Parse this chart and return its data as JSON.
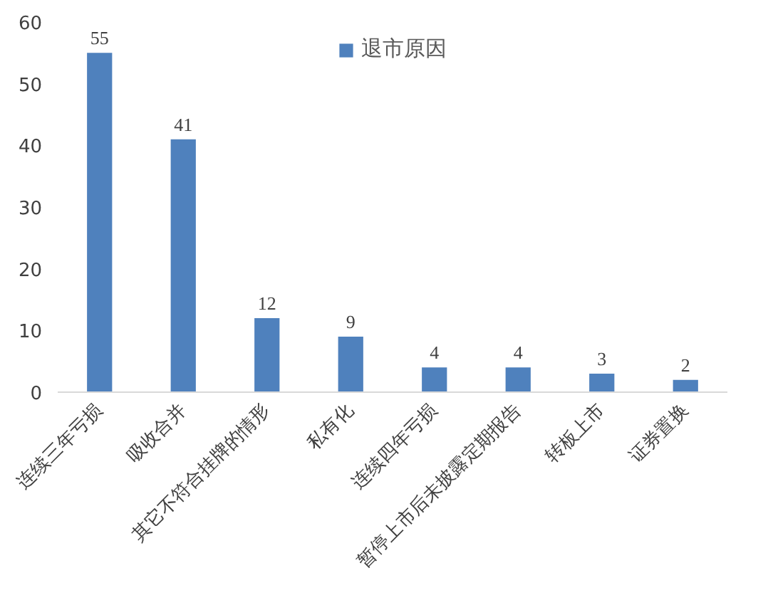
{
  "chart_data": {
    "type": "bar",
    "categories": [
      "连续三年亏损",
      "吸收合并",
      "其它不符合挂牌的情形",
      "私有化",
      "连续四年亏损",
      "暂停上市后未披露定期报告",
      "转板上市",
      "证券置换"
    ],
    "series": [
      {
        "name": "退市原因",
        "color": "#4f81bd",
        "values": [
          55,
          41,
          12,
          9,
          4,
          4,
          3,
          2
        ]
      }
    ],
    "ylim": [
      0,
      60
    ],
    "yticks": [
      0,
      10,
      20,
      30,
      40,
      50,
      60
    ],
    "data_labels": true,
    "grid": false,
    "legend": "top"
  }
}
